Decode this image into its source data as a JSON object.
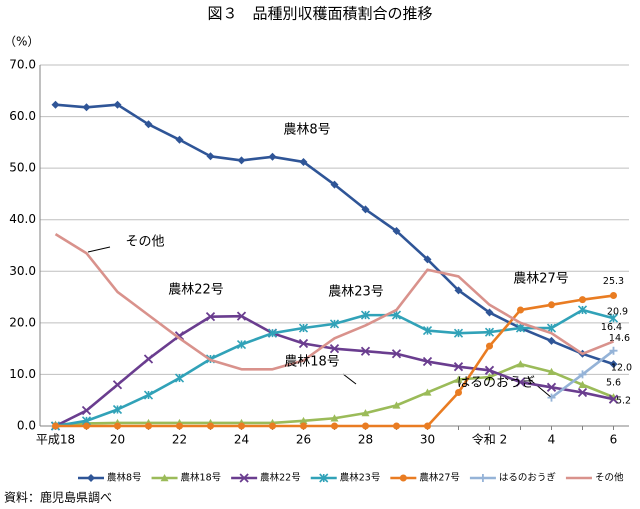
{
  "chart_data": {
    "type": "line",
    "title": "図３　品種別収穫面積割合の推移",
    "y_label": "（%）",
    "source": "資料：鹿児島県調べ",
    "categories": [
      "平成18",
      null,
      "20",
      null,
      "22",
      null,
      "24",
      null,
      "26",
      null,
      "28",
      null,
      "30",
      null,
      "令和 2",
      null,
      "4",
      null,
      "6"
    ],
    "ylim": [
      0,
      70
    ],
    "yticks": [
      {
        "value": 0,
        "label": "0.0"
      },
      {
        "value": 10,
        "label": "10.0"
      },
      {
        "value": 20,
        "label": "20.0"
      },
      {
        "value": 30,
        "label": "30.0"
      },
      {
        "value": 40,
        "label": "40.0"
      },
      {
        "value": 50,
        "label": "50.0"
      },
      {
        "value": 60,
        "label": "60.0"
      },
      {
        "value": 70,
        "label": "70.0"
      }
    ],
    "grid": true,
    "legend": "bottom",
    "annotations": [
      "農林8号",
      "その他",
      "農林22号",
      "農林23号",
      "農林27号",
      "農林18号",
      "はるのおうぎ"
    ],
    "series": [
      {
        "name": "農林8号",
        "color": "#2f5597",
        "marker": "diamond",
        "values": [
          62.3,
          61.8,
          62.3,
          58.5,
          55.5,
          52.3,
          51.5,
          52.2,
          51.2,
          46.8,
          42.0,
          37.8,
          32.3,
          26.3,
          22.0,
          19.0,
          16.5,
          14.0,
          12.0
        ],
        "value_labels": [
          null,
          null,
          null,
          null,
          null,
          null,
          null,
          null,
          null,
          null,
          null,
          null,
          null,
          null,
          null,
          null,
          null,
          null,
          "12.0"
        ]
      },
      {
        "name": "農林18号",
        "color": "#9bbb59",
        "marker": "triangle",
        "values": [
          0.3,
          0.5,
          0.6,
          0.6,
          0.6,
          0.6,
          0.6,
          0.6,
          1.0,
          1.5,
          2.5,
          4.0,
          6.5,
          9.0,
          9.5,
          12.0,
          10.5,
          8.0,
          5.6
        ],
        "value_labels": [
          null,
          null,
          null,
          null,
          null,
          null,
          null,
          null,
          null,
          null,
          null,
          null,
          null,
          null,
          null,
          null,
          null,
          null,
          "5.6"
        ]
      },
      {
        "name": "農林22号",
        "color": "#6a3d8f",
        "marker": "x",
        "values": [
          0,
          3.0,
          8.0,
          13.0,
          17.5,
          21.2,
          21.3,
          18.0,
          16.0,
          15.0,
          14.5,
          14.0,
          12.5,
          11.5,
          10.8,
          8.5,
          7.5,
          6.5,
          5.2
        ],
        "value_labels": [
          null,
          null,
          null,
          null,
          null,
          null,
          null,
          null,
          null,
          null,
          null,
          null,
          null,
          null,
          null,
          null,
          null,
          null,
          "5.2"
        ]
      },
      {
        "name": "農林23号",
        "color": "#31a2b8",
        "marker": "star",
        "values": [
          0,
          1.0,
          3.2,
          6.0,
          9.3,
          13.0,
          15.8,
          18.0,
          19.0,
          19.8,
          21.5,
          21.5,
          18.5,
          18.0,
          18.2,
          19.0,
          19.0,
          22.5,
          20.9
        ],
        "value_labels": [
          null,
          null,
          null,
          null,
          null,
          null,
          null,
          null,
          null,
          null,
          null,
          null,
          null,
          null,
          null,
          null,
          null,
          null,
          "20.9"
        ]
      },
      {
        "name": "農林27号",
        "color": "#e97c22",
        "marker": "circle",
        "values": [
          0,
          0,
          0,
          0,
          0,
          0,
          0,
          0,
          0,
          0,
          0,
          0,
          0,
          6.5,
          15.5,
          22.5,
          23.5,
          24.5,
          25.3
        ],
        "value_labels": [
          null,
          null,
          null,
          null,
          null,
          null,
          null,
          null,
          null,
          null,
          null,
          null,
          null,
          null,
          null,
          null,
          null,
          null,
          "25.3"
        ]
      },
      {
        "name": "はるのおうぎ",
        "color": "#95b3d7",
        "marker": "plus",
        "values": [
          null,
          null,
          null,
          null,
          null,
          null,
          null,
          null,
          null,
          null,
          null,
          null,
          null,
          null,
          null,
          null,
          5.5,
          10.0,
          14.6
        ],
        "value_labels": [
          null,
          null,
          null,
          null,
          null,
          null,
          null,
          null,
          null,
          null,
          null,
          null,
          null,
          null,
          null,
          null,
          null,
          null,
          "14.6"
        ]
      },
      {
        "name": "その他",
        "color": "#d9928c",
        "marker": "none",
        "values": [
          37.2,
          33.5,
          26.0,
          21.5,
          17.0,
          12.8,
          11.0,
          11.0,
          12.7,
          17.0,
          19.5,
          22.5,
          30.3,
          29.0,
          23.5,
          20.0,
          18.0,
          14.0,
          16.4
        ],
        "value_labels": [
          null,
          null,
          null,
          null,
          null,
          null,
          null,
          null,
          null,
          null,
          null,
          null,
          null,
          null,
          null,
          null,
          null,
          null,
          "16.4"
        ]
      }
    ]
  }
}
